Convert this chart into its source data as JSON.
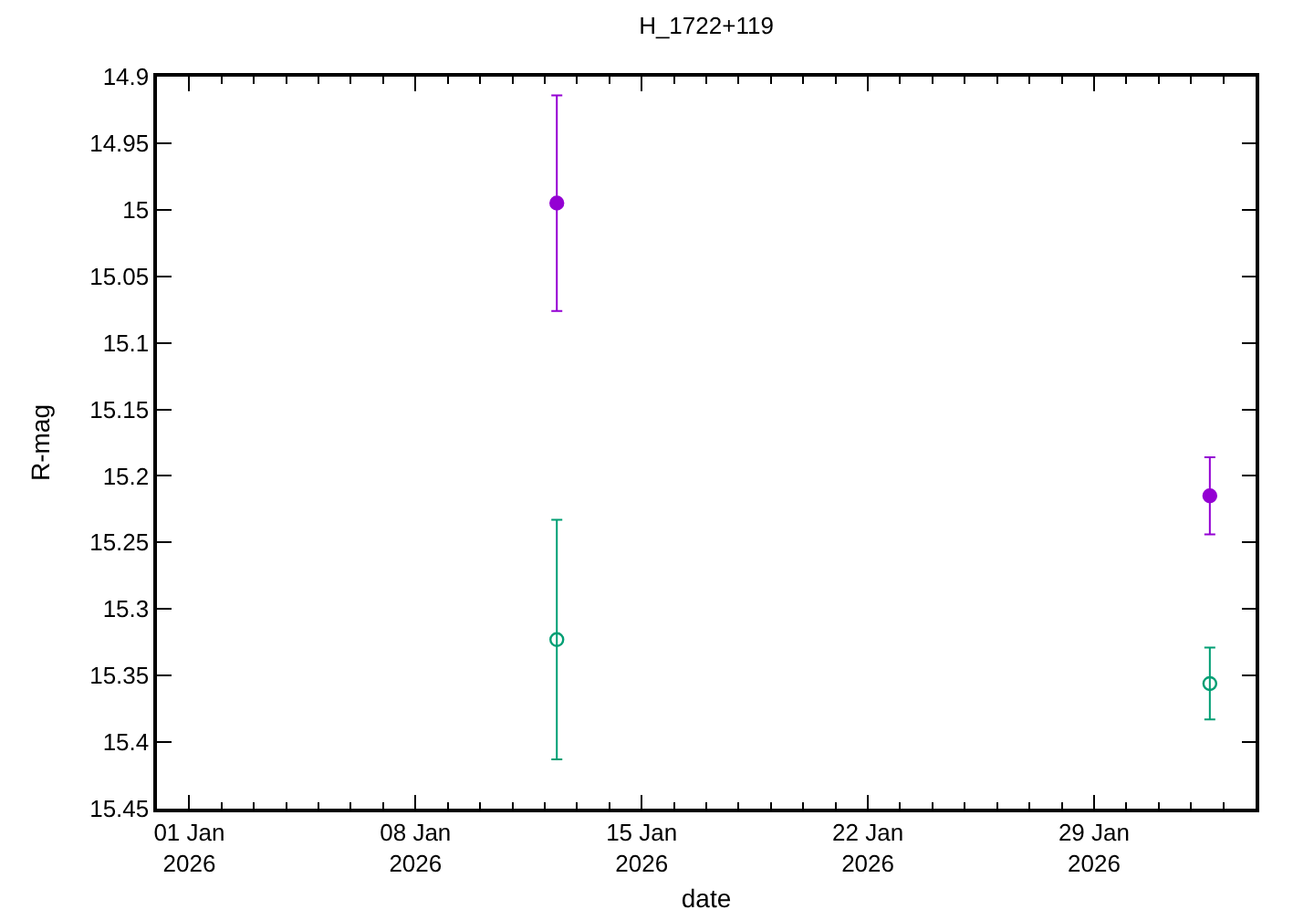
{
  "chart_data": {
    "type": "scatter",
    "title": "H_1722+119",
    "xlabel": "date",
    "ylabel": "R-mag",
    "series": [
      {
        "color": "#9400d3",
        "marker": "circle",
        "x": [
          "2026-01-12T09:00",
          "2026-02-01T14:00"
        ],
        "values": [
          14.995,
          15.215
        ],
        "errors": [
          0.081,
          0.029
        ]
      },
      {
        "color": "#009e73",
        "marker": "circle open",
        "x": [
          "2026-01-12T09:00",
          "2026-02-01T14:00"
        ],
        "values": [
          15.323,
          15.356
        ],
        "errors": [
          0.09,
          0.027
        ]
      }
    ],
    "xlim": [
      "2025-12-31",
      "2026-02-03"
    ],
    "xticks": [
      {
        "value": "2026-01-01",
        "label": "01 Jan\n2026"
      },
      {
        "value": "2026-01-02",
        "label": null
      },
      {
        "value": "2026-01-03",
        "label": null
      },
      {
        "value": "2026-01-04",
        "label": null
      },
      {
        "value": "2026-01-05",
        "label": null
      },
      {
        "value": "2026-01-06",
        "label": null
      },
      {
        "value": "2026-01-07",
        "label": null
      },
      {
        "value": "2026-01-08",
        "label": "08 Jan\n2026"
      },
      {
        "value": "2026-01-09",
        "label": null
      },
      {
        "value": "2026-01-10",
        "label": null
      },
      {
        "value": "2026-01-11",
        "label": null
      },
      {
        "value": "2026-01-12",
        "label": null
      },
      {
        "value": "2026-01-13",
        "label": null
      },
      {
        "value": "2026-01-14",
        "label": null
      },
      {
        "value": "2026-01-15",
        "label": "15 Jan\n2026"
      },
      {
        "value": "2026-01-16",
        "label": null
      },
      {
        "value": "2026-01-17",
        "label": null
      },
      {
        "value": "2026-01-18",
        "label": null
      },
      {
        "value": "2026-01-19",
        "label": null
      },
      {
        "value": "2026-01-20",
        "label": null
      },
      {
        "value": "2026-01-21",
        "label": null
      },
      {
        "value": "2026-01-22",
        "label": "22 Jan\n2026"
      },
      {
        "value": "2026-01-23",
        "label": null
      },
      {
        "value": "2026-01-24",
        "label": null
      },
      {
        "value": "2026-01-25",
        "label": null
      },
      {
        "value": "2026-01-26",
        "label": null
      },
      {
        "value": "2026-01-27",
        "label": null
      },
      {
        "value": "2026-01-28",
        "label": null
      },
      {
        "value": "2026-01-29",
        "label": "29 Jan\n2026"
      },
      {
        "value": "2026-01-30",
        "label": null
      },
      {
        "value": "2026-01-31",
        "label": null
      },
      {
        "value": "2026-02-01",
        "label": null
      },
      {
        "value": "2026-02-02",
        "label": null
      }
    ],
    "ylim": [
      15.45,
      14.9
    ],
    "yticks": [
      14.9,
      14.95,
      15,
      15.05,
      15.1,
      15.15,
      15.2,
      15.25,
      15.3,
      15.35,
      15.4,
      15.45
    ]
  }
}
